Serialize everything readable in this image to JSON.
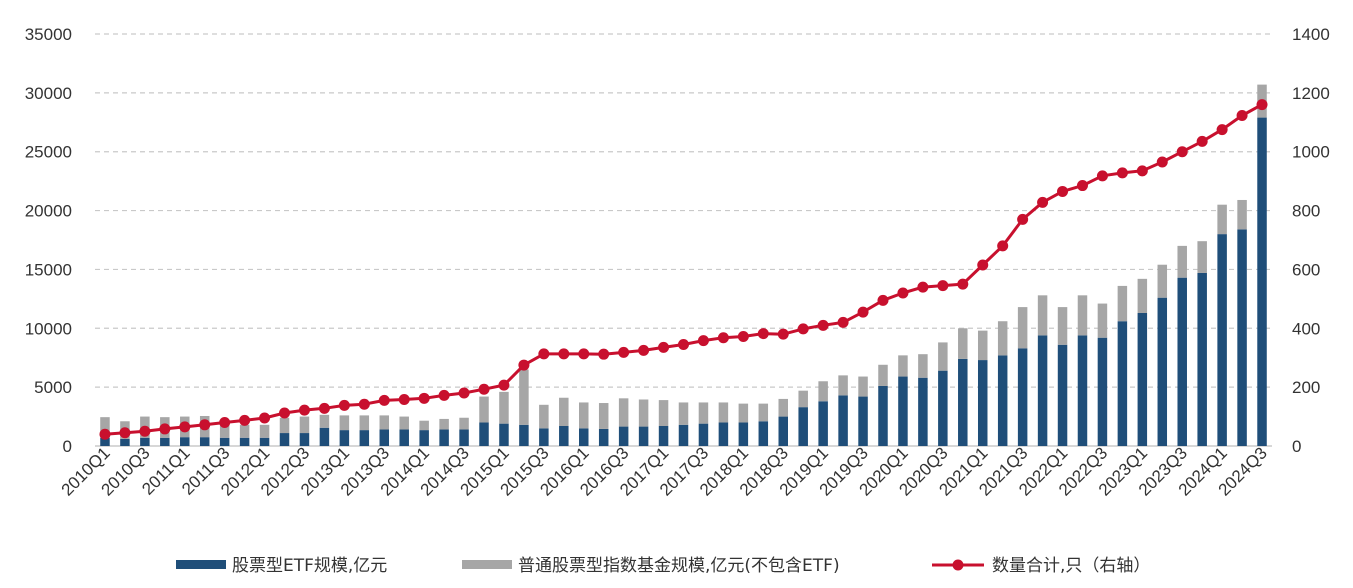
{
  "chart_data": {
    "type": "bar",
    "title": "",
    "xlabel": "",
    "ylabel": "",
    "y2label": "",
    "ylim": [
      0,
      35000
    ],
    "y2lim": [
      0,
      1400
    ],
    "yticks": [
      "0",
      "5000",
      "10000",
      "15000",
      "20000",
      "25000",
      "30000",
      "35000"
    ],
    "y2ticks": [
      "0",
      "200",
      "400",
      "600",
      "800",
      "1000",
      "1200",
      "1400"
    ],
    "grid": "horizontal-dashed",
    "stacked": true,
    "categories": [
      "2010Q1",
      "2010Q2",
      "2010Q3",
      "2010Q4",
      "2011Q1",
      "2011Q2",
      "2011Q3",
      "2011Q4",
      "2012Q1",
      "2012Q2",
      "2012Q3",
      "2012Q4",
      "2013Q1",
      "2013Q2",
      "2013Q3",
      "2013Q4",
      "2014Q1",
      "2014Q2",
      "2014Q3",
      "2014Q4",
      "2015Q1",
      "2015Q2",
      "2015Q3",
      "2015Q4",
      "2016Q1",
      "2016Q2",
      "2016Q3",
      "2016Q4",
      "2017Q1",
      "2017Q2",
      "2017Q3",
      "2017Q4",
      "2018Q1",
      "2018Q2",
      "2018Q3",
      "2018Q4",
      "2019Q1",
      "2019Q2",
      "2019Q3",
      "2019Q4",
      "2020Q1",
      "2020Q2",
      "2020Q3",
      "2020Q4",
      "2021Q1",
      "2021Q2",
      "2021Q3",
      "2021Q4",
      "2022Q1",
      "2022Q2",
      "2022Q3",
      "2022Q4",
      "2023Q1",
      "2023Q2",
      "2023Q3",
      "2023Q4",
      "2024Q1",
      "2024Q2",
      "2024Q3"
    ],
    "xtick_labels": [
      "2010Q1",
      "2010Q3",
      "2011Q1",
      "2011Q3",
      "2012Q1",
      "2012Q3",
      "2013Q1",
      "2013Q3",
      "2014Q1",
      "2014Q3",
      "2015Q1",
      "2015Q3",
      "2016Q1",
      "2016Q3",
      "2017Q1",
      "2017Q3",
      "2018Q1",
      "2018Q3",
      "2019Q1",
      "2019Q3",
      "2020Q1",
      "2020Q3",
      "2021Q1",
      "2021Q3",
      "2022Q1",
      "2022Q3",
      "2023Q1",
      "2023Q3",
      "2024Q1",
      "2024Q3"
    ],
    "series": [
      {
        "name": "股票型ETF规模,亿元",
        "kind": "bar",
        "axis": "left",
        "color": "#1f4e79",
        "values": [
          700,
          600,
          700,
          700,
          750,
          750,
          700,
          700,
          700,
          1100,
          1100,
          1550,
          1350,
          1350,
          1400,
          1400,
          1350,
          1400,
          1400,
          2000,
          1900,
          1800,
          1500,
          1700,
          1500,
          1450,
          1650,
          1650,
          1700,
          1800,
          1900,
          2000,
          2000,
          2100,
          2500,
          3300,
          3800,
          4300,
          4200,
          5100,
          5900,
          5800,
          6400,
          7400,
          7300,
          7700,
          8300,
          9400,
          8600,
          9400,
          9200,
          10600,
          11300,
          12600,
          14300,
          14700,
          18000,
          18400,
          27900
        ]
      },
      {
        "name": "普通股票型指数基金规模,亿元(不包含ETF)",
        "kind": "bar",
        "axis": "left",
        "color": "#a6a6a6",
        "values": [
          1750,
          1500,
          1800,
          1750,
          1750,
          1800,
          1500,
          1100,
          1100,
          1300,
          1400,
          1100,
          1250,
          1250,
          1200,
          1100,
          800,
          900,
          1000,
          2200,
          2700,
          4700,
          2000,
          2400,
          2200,
          2200,
          2400,
          2300,
          2200,
          1900,
          1800,
          1700,
          1600,
          1500,
          1500,
          1400,
          1700,
          1700,
          1700,
          1800,
          1800,
          2000,
          2400,
          2600,
          2500,
          2900,
          3500,
          3400,
          3200,
          3400,
          2900,
          3000,
          2900,
          2800,
          2700,
          2700,
          2500,
          2500,
          2800
        ]
      },
      {
        "name": "数量合计,只（右轴）",
        "kind": "line",
        "axis": "right",
        "color": "#c8102e",
        "values": [
          40,
          45,
          50,
          58,
          65,
          72,
          80,
          87,
          95,
          112,
          122,
          128,
          138,
          142,
          155,
          158,
          162,
          172,
          180,
          193,
          207,
          275,
          313,
          313,
          313,
          312,
          318,
          325,
          335,
          345,
          358,
          368,
          372,
          382,
          380,
          398,
          410,
          420,
          455,
          495,
          520,
          540,
          545,
          550,
          615,
          680,
          770,
          828,
          865,
          885,
          918,
          928,
          935,
          965,
          1000,
          1035,
          1075,
          1123,
          1160
        ]
      }
    ],
    "legend": {
      "placement": "bottom-center"
    }
  }
}
